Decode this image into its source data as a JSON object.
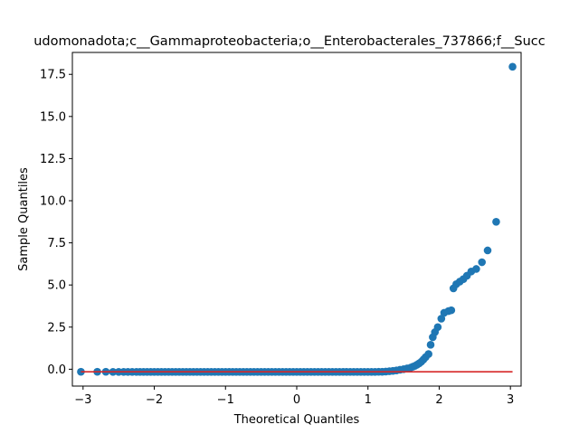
{
  "chart_data": {
    "type": "scatter",
    "title": "udomonadota;c__Gammaproteobacteria;o__Enterobacterales_737866;f__Succ",
    "xlabel": "Theoretical Quantiles",
    "ylabel": "Sample Quantiles",
    "xlim": [
      -3.15,
      3.15
    ],
    "ylim": [
      -1.0,
      18.8
    ],
    "xticks": [
      -3,
      -2,
      -1,
      0,
      1,
      2,
      3
    ],
    "xtick_labels": [
      "−3",
      "−2",
      "−1",
      "0",
      "1",
      "2",
      "3"
    ],
    "yticks": [
      0.0,
      2.5,
      5.0,
      7.5,
      10.0,
      12.5,
      15.0,
      17.5
    ],
    "ytick_labels": [
      "0.0",
      "2.5",
      "5.0",
      "7.5",
      "10.0",
      "12.5",
      "15.0",
      "17.5"
    ],
    "grid": false,
    "marker_color": "#1f77b4",
    "line_color": "#d62728",
    "reference_line": {
      "x": [
        -3.03,
        3.03
      ],
      "y": [
        -0.15,
        -0.15
      ]
    },
    "series": [
      {
        "points": [
          [
            -3.03,
            -0.15
          ],
          [
            -2.8,
            -0.15
          ],
          [
            -2.68,
            -0.15
          ],
          [
            -2.58,
            -0.16
          ],
          [
            -2.5,
            -0.16
          ],
          [
            -2.43,
            -0.16
          ],
          [
            -2.37,
            -0.16
          ],
          [
            -2.31,
            -0.16
          ],
          [
            -2.25,
            -0.16
          ],
          [
            -2.2,
            -0.16
          ],
          [
            -2.15,
            -0.16
          ],
          [
            -2.1,
            -0.16
          ],
          [
            -2.05,
            -0.16
          ],
          [
            -2.0,
            -0.16
          ],
          [
            -1.95,
            -0.16
          ],
          [
            -1.9,
            -0.16
          ],
          [
            -1.85,
            -0.16
          ],
          [
            -1.8,
            -0.16
          ],
          [
            -1.75,
            -0.16
          ],
          [
            -1.7,
            -0.16
          ],
          [
            -1.65,
            -0.16
          ],
          [
            -1.6,
            -0.16
          ],
          [
            -1.55,
            -0.16
          ],
          [
            -1.5,
            -0.16
          ],
          [
            -1.45,
            -0.16
          ],
          [
            -1.4,
            -0.16
          ],
          [
            -1.35,
            -0.16
          ],
          [
            -1.3,
            -0.16
          ],
          [
            -1.25,
            -0.16
          ],
          [
            -1.2,
            -0.16
          ],
          [
            -1.15,
            -0.16
          ],
          [
            -1.1,
            -0.16
          ],
          [
            -1.05,
            -0.16
          ],
          [
            -1.0,
            -0.16
          ],
          [
            -0.95,
            -0.16
          ],
          [
            -0.9,
            -0.16
          ],
          [
            -0.85,
            -0.16
          ],
          [
            -0.8,
            -0.16
          ],
          [
            -0.75,
            -0.16
          ],
          [
            -0.7,
            -0.16
          ],
          [
            -0.65,
            -0.16
          ],
          [
            -0.6,
            -0.16
          ],
          [
            -0.55,
            -0.16
          ],
          [
            -0.5,
            -0.16
          ],
          [
            -0.45,
            -0.16
          ],
          [
            -0.4,
            -0.16
          ],
          [
            -0.35,
            -0.16
          ],
          [
            -0.3,
            -0.16
          ],
          [
            -0.25,
            -0.16
          ],
          [
            -0.2,
            -0.16
          ],
          [
            -0.15,
            -0.16
          ],
          [
            -0.1,
            -0.16
          ],
          [
            -0.05,
            -0.16
          ],
          [
            0.0,
            -0.16
          ],
          [
            0.05,
            -0.16
          ],
          [
            0.1,
            -0.16
          ],
          [
            0.15,
            -0.16
          ],
          [
            0.2,
            -0.16
          ],
          [
            0.25,
            -0.16
          ],
          [
            0.3,
            -0.16
          ],
          [
            0.35,
            -0.16
          ],
          [
            0.4,
            -0.16
          ],
          [
            0.45,
            -0.16
          ],
          [
            0.5,
            -0.16
          ],
          [
            0.55,
            -0.16
          ],
          [
            0.6,
            -0.16
          ],
          [
            0.65,
            -0.16
          ],
          [
            0.7,
            -0.16
          ],
          [
            0.75,
            -0.16
          ],
          [
            0.8,
            -0.16
          ],
          [
            0.85,
            -0.16
          ],
          [
            0.9,
            -0.16
          ],
          [
            0.95,
            -0.16
          ],
          [
            1.0,
            -0.16
          ],
          [
            1.05,
            -0.16
          ],
          [
            1.1,
            -0.16
          ],
          [
            1.15,
            -0.15
          ],
          [
            1.2,
            -0.15
          ],
          [
            1.25,
            -0.14
          ],
          [
            1.3,
            -0.12
          ],
          [
            1.35,
            -0.1
          ],
          [
            1.4,
            -0.07
          ],
          [
            1.45,
            -0.03
          ],
          [
            1.5,
            0.0
          ],
          [
            1.55,
            0.05
          ],
          [
            1.6,
            0.1
          ],
          [
            1.63,
            0.15
          ],
          [
            1.66,
            0.2
          ],
          [
            1.69,
            0.27
          ],
          [
            1.72,
            0.35
          ],
          [
            1.75,
            0.45
          ],
          [
            1.78,
            0.58
          ],
          [
            1.81,
            0.72
          ],
          [
            1.85,
            0.9
          ],
          [
            1.88,
            1.45
          ],
          [
            1.91,
            1.9
          ],
          [
            1.94,
            2.2
          ],
          [
            1.98,
            2.5
          ],
          [
            2.03,
            3.0
          ],
          [
            2.07,
            3.35
          ],
          [
            2.13,
            3.45
          ],
          [
            2.17,
            3.5
          ],
          [
            2.2,
            4.8
          ],
          [
            2.24,
            5.05
          ],
          [
            2.29,
            5.2
          ],
          [
            2.34,
            5.35
          ],
          [
            2.39,
            5.55
          ],
          [
            2.45,
            5.8
          ],
          [
            2.52,
            5.95
          ],
          [
            2.6,
            6.35
          ],
          [
            2.68,
            7.05
          ],
          [
            2.8,
            8.75
          ],
          [
            3.03,
            17.95
          ]
        ]
      }
    ]
  }
}
